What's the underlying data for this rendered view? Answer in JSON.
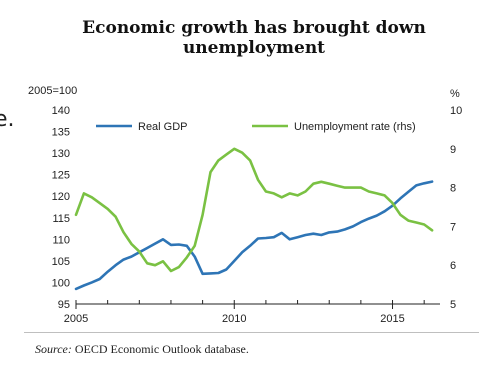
{
  "page_edge_text": "e.",
  "chart_data": {
    "type": "line",
    "title": "Economic growth has brought down unemployment",
    "title_lines": [
      "Economic growth has brought down",
      "unemployment"
    ],
    "left_axis_unit": "2005=100",
    "right_axis_unit": "%",
    "ylim": [
      95,
      140
    ],
    "y_ticks": [
      95,
      100,
      105,
      110,
      115,
      120,
      125,
      130,
      135,
      140
    ],
    "y2lim": [
      5,
      10
    ],
    "y2_ticks": [
      5,
      6,
      7,
      8,
      9,
      10
    ],
    "xlim": [
      2005,
      2016.5
    ],
    "x_ticks": [
      2005,
      2010,
      2015
    ],
    "grid": false,
    "legend_placement": "top",
    "series": [
      {
        "name": "Real GDP",
        "axis": "left",
        "color": "#2e75b6",
        "x": [
          2005.0,
          2005.25,
          2005.5,
          2005.75,
          2006.0,
          2006.25,
          2006.5,
          2006.75,
          2007.0,
          2007.25,
          2007.5,
          2007.75,
          2008.0,
          2008.25,
          2008.5,
          2008.75,
          2009.0,
          2009.25,
          2009.5,
          2009.75,
          2010.0,
          2010.25,
          2010.5,
          2010.75,
          2011.0,
          2011.25,
          2011.5,
          2011.75,
          2012.0,
          2012.25,
          2012.5,
          2012.75,
          2013.0,
          2013.25,
          2013.5,
          2013.75,
          2014.0,
          2014.25,
          2014.5,
          2014.75,
          2015.0,
          2015.25,
          2015.5,
          2015.75,
          2016.0,
          2016.25
        ],
        "values": [
          98.5,
          99.3,
          100.0,
          100.8,
          102.5,
          104.0,
          105.3,
          106.0,
          107.0,
          108.0,
          109.0,
          110.0,
          108.7,
          108.8,
          108.5,
          106.0,
          102.0,
          102.1,
          102.2,
          103.0,
          105.0,
          107.0,
          108.5,
          110.2,
          110.3,
          110.5,
          111.5,
          110.0,
          110.5,
          111.0,
          111.3,
          111.0,
          111.6,
          111.8,
          112.3,
          113.0,
          114.0,
          114.8,
          115.5,
          116.5,
          117.8,
          119.5,
          121.0,
          122.5,
          123.0,
          123.4
        ]
      },
      {
        "name": "Unemployment rate (rhs)",
        "axis": "right",
        "color": "#7ac143",
        "x": [
          2005.0,
          2005.25,
          2005.5,
          2005.75,
          2006.0,
          2006.25,
          2006.5,
          2006.75,
          2007.0,
          2007.25,
          2007.5,
          2007.75,
          2008.0,
          2008.25,
          2008.5,
          2008.75,
          2009.0,
          2009.25,
          2009.5,
          2009.75,
          2010.0,
          2010.25,
          2010.5,
          2010.75,
          2011.0,
          2011.25,
          2011.5,
          2011.75,
          2012.0,
          2012.25,
          2012.5,
          2012.75,
          2013.0,
          2013.25,
          2013.5,
          2013.75,
          2014.0,
          2014.25,
          2014.5,
          2014.75,
          2015.0,
          2015.25,
          2015.5,
          2015.75,
          2016.0,
          2016.25
        ],
        "values": [
          7.3,
          7.85,
          7.75,
          7.6,
          7.45,
          7.25,
          6.85,
          6.55,
          6.35,
          6.05,
          6.0,
          6.1,
          5.85,
          5.95,
          6.2,
          6.5,
          7.3,
          8.4,
          8.7,
          8.85,
          9.0,
          8.9,
          8.7,
          8.2,
          7.9,
          7.85,
          7.75,
          7.85,
          7.8,
          7.9,
          8.1,
          8.15,
          8.1,
          8.05,
          8.0,
          8.0,
          8.0,
          7.9,
          7.85,
          7.8,
          7.6,
          7.3,
          7.15,
          7.1,
          7.05,
          6.9
        ]
      }
    ]
  },
  "source": {
    "label": "Source:",
    "text": "OECD Economic Outlook database."
  }
}
